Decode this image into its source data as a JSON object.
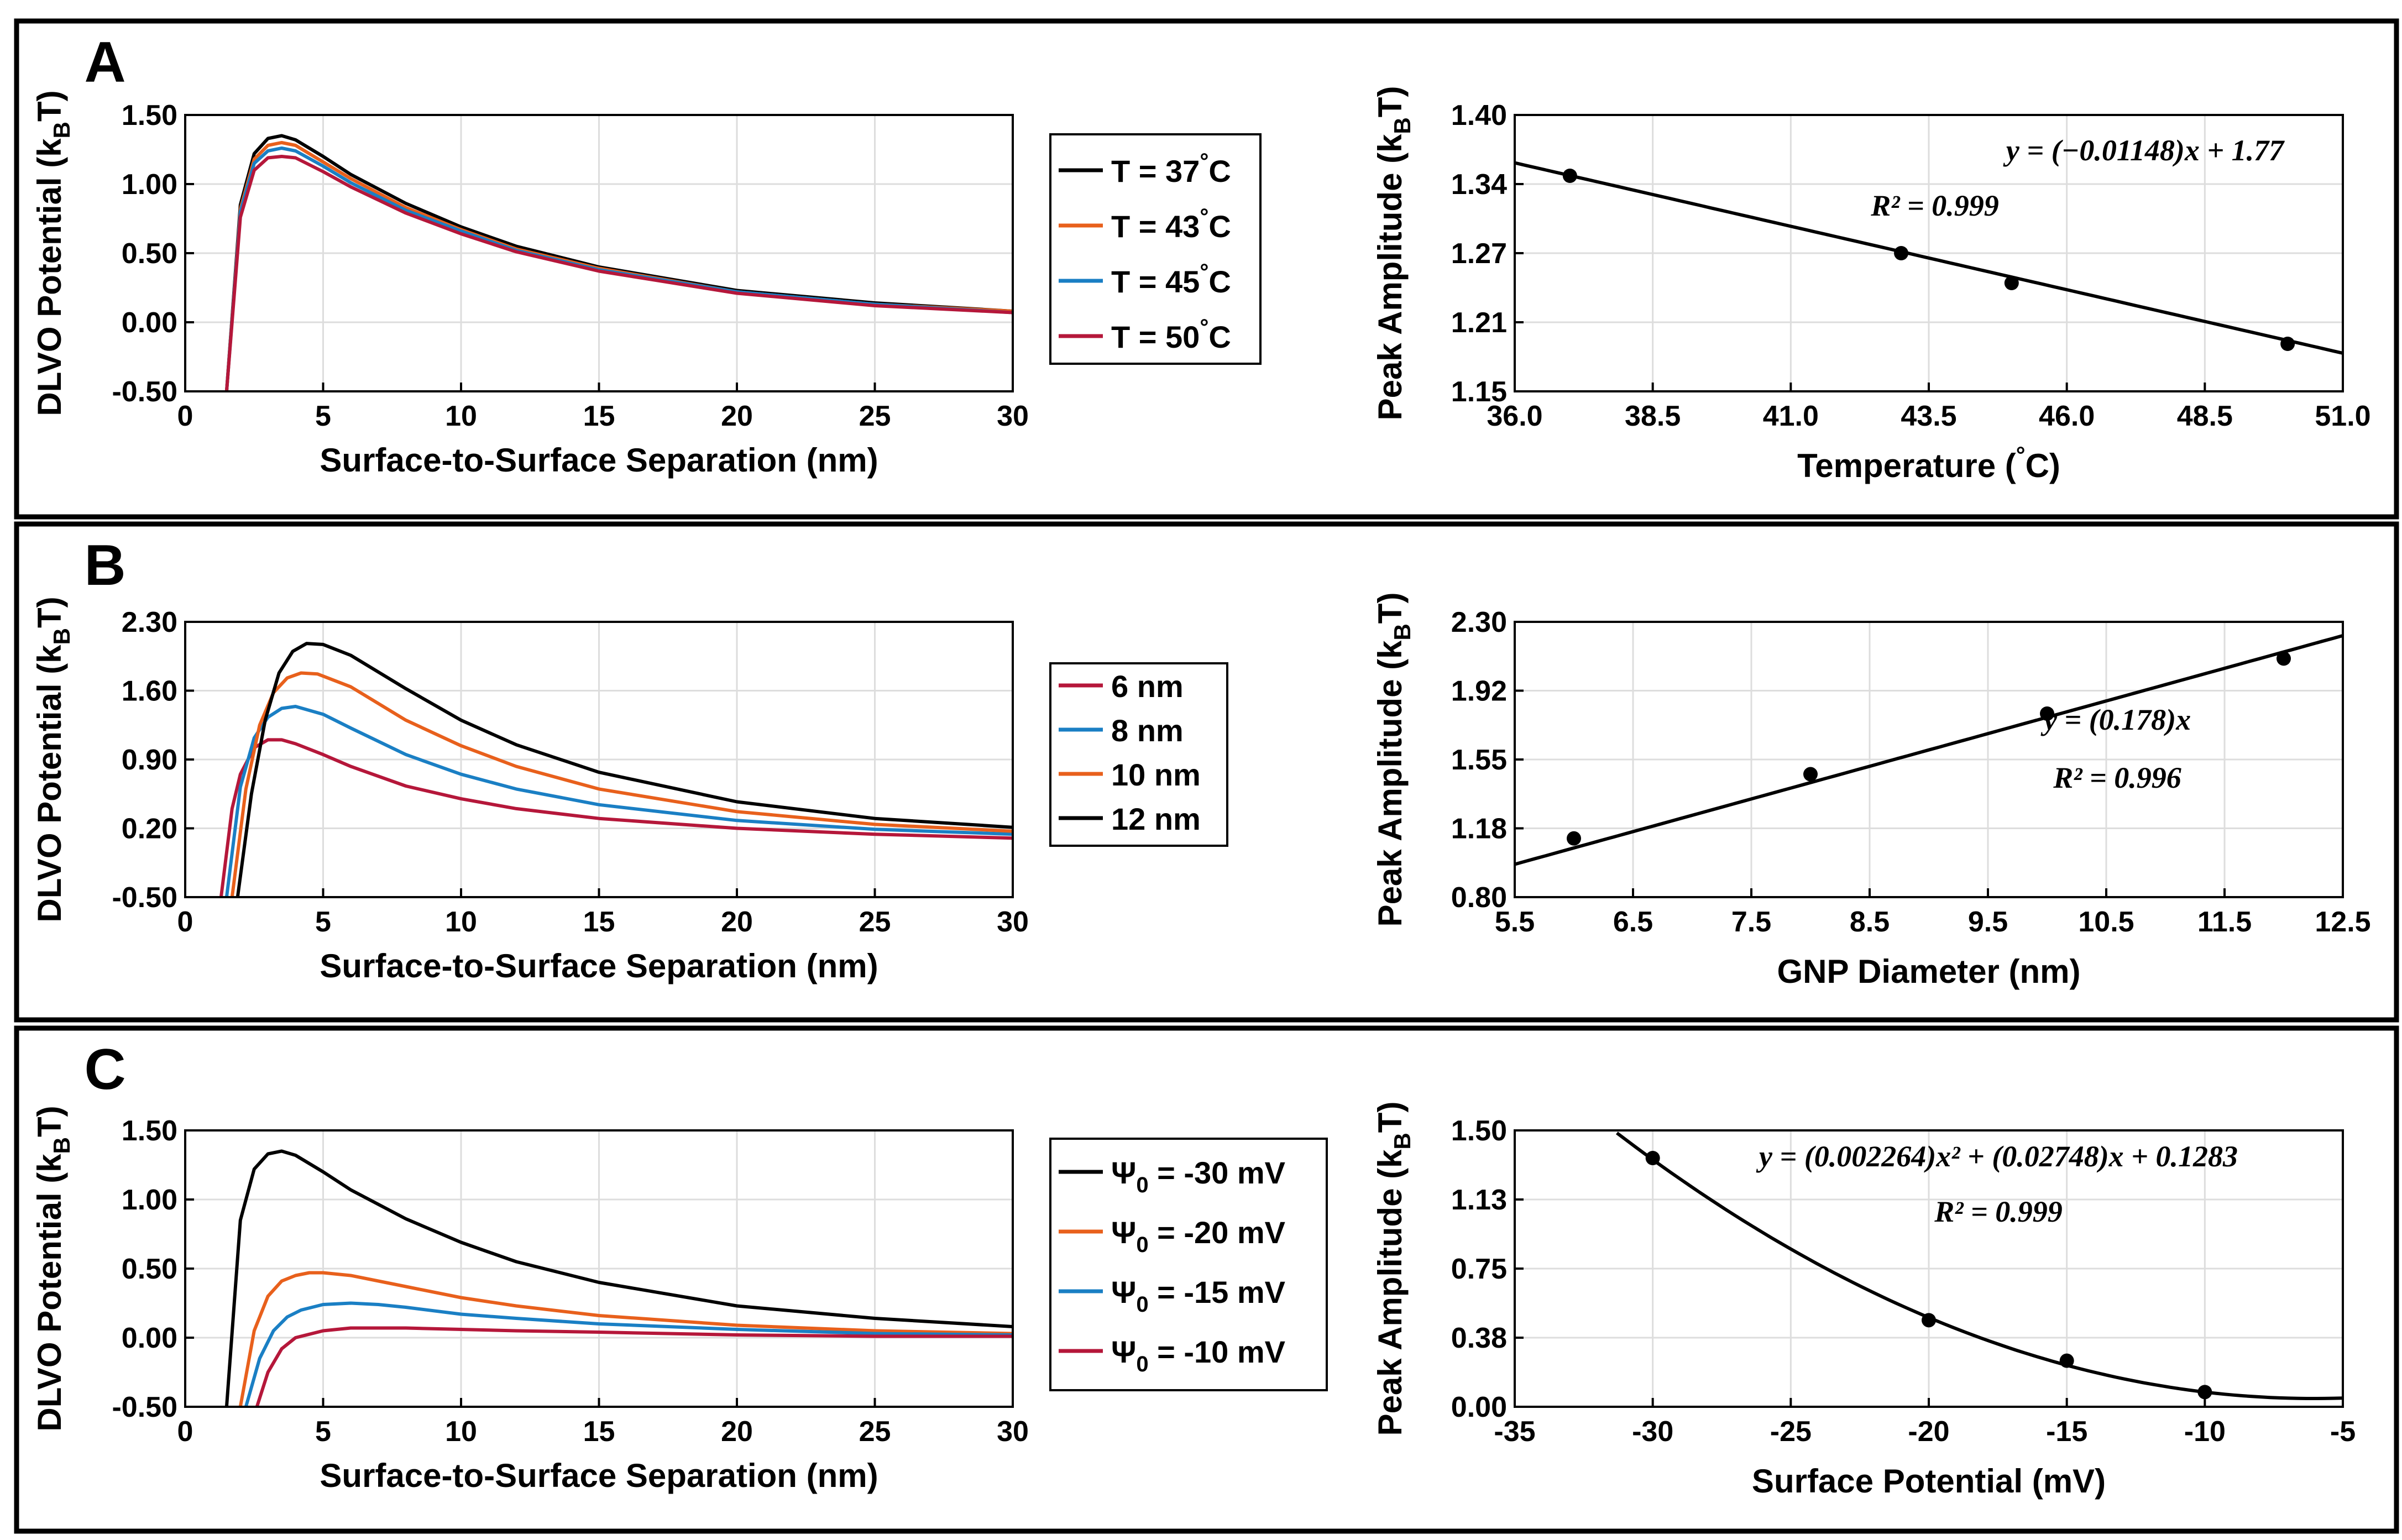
{
  "figure": {
    "panels": [
      {
        "letter": "A",
        "left": {
          "ylabel_main": "DLVO Potential (k",
          "ylabel_sub": "B",
          "ylabel_end": "T)",
          "xlabel": "Surface-to-Surface Separation (nm)",
          "yticks": [
            "1.50",
            "1.00",
            "0.50",
            "0.00",
            "-0.50"
          ],
          "xticks": [
            "0",
            "5",
            "10",
            "15",
            "20",
            "25",
            "30"
          ],
          "legend": [
            {
              "label": "T = 37",
              "sup": "°",
              "tail": "C",
              "color": "#000000"
            },
            {
              "label": "T = 43",
              "sup": "°",
              "tail": "C",
              "color": "#e8601c"
            },
            {
              "label": "T = 45",
              "sup": "°",
              "tail": "C",
              "color": "#1a7fc4"
            },
            {
              "label": "T = 50",
              "sup": "°",
              "tail": "C",
              "color": "#b5173a"
            }
          ]
        },
        "right": {
          "ylabel_main": "Peak Amplitude (k",
          "ylabel_sub": "B",
          "ylabel_end": "T)",
          "xlabel_main": "Temperature (",
          "xlabel_sup": "°",
          "xlabel_end": "C)",
          "yticks": [
            "1.40",
            "1.34",
            "1.27",
            "1.21",
            "1.15"
          ],
          "xticks": [
            "36.0",
            "38.5",
            "41.0",
            "43.5",
            "46.0",
            "48.5",
            "51.0"
          ],
          "equation": "y = (−0.01148)x + 1.77",
          "r2": "R² = 0.999"
        }
      },
      {
        "letter": "B",
        "left": {
          "ylabel_main": "DLVO Potential (k",
          "ylabel_sub": "B",
          "ylabel_end": "T)",
          "xlabel": "Surface-to-Surface Separation (nm)",
          "yticks": [
            "2.30",
            "1.60",
            "0.90",
            "0.20",
            "-0.50"
          ],
          "xticks": [
            "0",
            "5",
            "10",
            "15",
            "20",
            "25",
            "30"
          ],
          "legend": [
            {
              "label": "6 nm",
              "color": "#b5173a"
            },
            {
              "label": "8 nm",
              "color": "#1a7fc4"
            },
            {
              "label": "10 nm",
              "color": "#e8601c"
            },
            {
              "label": "12 nm",
              "color": "#000000"
            }
          ]
        },
        "right": {
          "ylabel_main": "Peak Amplitude (k",
          "ylabel_sub": "B",
          "ylabel_end": "T)",
          "xlabel": "GNP Diameter (nm)",
          "yticks": [
            "2.30",
            "1.92",
            "1.55",
            "1.18",
            "0.80"
          ],
          "xticks": [
            "5.5",
            "6.5",
            "7.5",
            "8.5",
            "9.5",
            "10.5",
            "11.5",
            "12.5"
          ],
          "equation": "y = (0.178)x",
          "r2": "R² = 0.996"
        }
      },
      {
        "letter": "C",
        "left": {
          "ylabel_main": "DLVO Potential (k",
          "ylabel_sub": "B",
          "ylabel_end": "T)",
          "xlabel": "Surface-to-Surface Separation (nm)",
          "yticks": [
            "1.50",
            "1.00",
            "0.50",
            "0.00",
            "-0.50"
          ],
          "xticks": [
            "0",
            "5",
            "10",
            "15",
            "20",
            "25",
            "30"
          ],
          "legend": [
            {
              "label": "Ψ",
              "sub": "0",
              "tail": " = -30 mV",
              "color": "#000000"
            },
            {
              "label": "Ψ",
              "sub": "0",
              "tail": " = -20 mV",
              "color": "#e8601c"
            },
            {
              "label": "Ψ",
              "sub": "0",
              "tail": " = -15 mV",
              "color": "#1a7fc4"
            },
            {
              "label": "Ψ",
              "sub": "0",
              "tail": " = -10 mV",
              "color": "#b5173a"
            }
          ]
        },
        "right": {
          "ylabel_main": "Peak Amplitude (k",
          "ylabel_sub": "B",
          "ylabel_end": "T)",
          "xlabel": "Surface Potential (mV)",
          "yticks": [
            "1.50",
            "1.13",
            "0.75",
            "0.38",
            "0.00"
          ],
          "xticks": [
            "-35",
            "-30",
            "-25",
            "-20",
            "-15",
            "-10",
            "-5"
          ],
          "equation": "y = (0.002264)x² + (0.02748)x + 0.1283",
          "r2": "R² = 0.999"
        }
      }
    ]
  },
  "chart_data": [
    {
      "type": "line",
      "panel": "A-left",
      "xlabel": "Surface-to-Surface Separation (nm)",
      "ylabel": "DLVO Potential (kBT)",
      "xlim": [
        0,
        30
      ],
      "ylim": [
        -0.5,
        1.5
      ],
      "grid": true,
      "legend": "outside-right",
      "series": [
        {
          "name": "T = 37°C",
          "color": "#000000",
          "x": [
            1.5,
            2.0,
            2.5,
            3.0,
            3.5,
            4.0,
            5.0,
            6.0,
            8.0,
            10.0,
            12.0,
            15.0,
            20.0,
            25.0,
            30.0
          ],
          "y": [
            -0.5,
            0.85,
            1.22,
            1.33,
            1.35,
            1.32,
            1.2,
            1.07,
            0.86,
            0.69,
            0.55,
            0.4,
            0.23,
            0.14,
            0.08
          ]
        },
        {
          "name": "T = 43°C",
          "color": "#e8601c",
          "x": [
            1.5,
            2.0,
            2.5,
            3.0,
            3.5,
            4.0,
            5.0,
            6.0,
            8.0,
            10.0,
            12.0,
            15.0,
            20.0,
            25.0,
            30.0
          ],
          "y": [
            -0.5,
            0.82,
            1.18,
            1.28,
            1.3,
            1.28,
            1.16,
            1.04,
            0.83,
            0.67,
            0.53,
            0.39,
            0.22,
            0.13,
            0.08
          ]
        },
        {
          "name": "T = 45°C",
          "color": "#1a7fc4",
          "x": [
            1.5,
            2.0,
            2.5,
            3.0,
            3.5,
            4.0,
            5.0,
            6.0,
            8.0,
            10.0,
            12.0,
            15.0,
            20.0,
            25.0,
            30.0
          ],
          "y": [
            -0.5,
            0.8,
            1.15,
            1.24,
            1.26,
            1.24,
            1.13,
            1.01,
            0.81,
            0.66,
            0.52,
            0.38,
            0.22,
            0.13,
            0.07
          ]
        },
        {
          "name": "T = 50°C",
          "color": "#b5173a",
          "x": [
            1.5,
            2.0,
            2.5,
            3.0,
            3.5,
            4.0,
            5.0,
            6.0,
            8.0,
            10.0,
            12.0,
            15.0,
            20.0,
            25.0,
            30.0
          ],
          "y": [
            -0.5,
            0.76,
            1.1,
            1.19,
            1.2,
            1.19,
            1.09,
            0.98,
            0.79,
            0.64,
            0.51,
            0.37,
            0.21,
            0.12,
            0.07
          ]
        }
      ]
    },
    {
      "type": "scatter",
      "panel": "A-right",
      "xlabel": "Temperature (°C)",
      "ylabel": "Peak Amplitude (kBT)",
      "xlim": [
        36.0,
        51.0
      ],
      "ylim": [
        1.15,
        1.4
      ],
      "grid": true,
      "points": {
        "x": [
          37,
          43,
          45,
          50
        ],
        "y": [
          1.345,
          1.275,
          1.248,
          1.193
        ]
      },
      "fit": {
        "kind": "linear",
        "a": -0.01148,
        "b": 1.77,
        "x_range": [
          36.0,
          51.0
        ]
      }
    },
    {
      "type": "line",
      "panel": "B-left",
      "xlabel": "Surface-to-Surface Separation (nm)",
      "ylabel": "DLVO Potential (kBT)",
      "xlim": [
        0,
        30
      ],
      "ylim": [
        -0.5,
        2.3
      ],
      "grid": true,
      "legend": "outside-right",
      "series": [
        {
          "name": "6 nm",
          "color": "#b5173a",
          "x": [
            1.3,
            1.7,
            2.0,
            2.5,
            3.0,
            3.5,
            4.0,
            5.0,
            6.0,
            8.0,
            10.0,
            12.0,
            15.0,
            20.0,
            25.0,
            30.0
          ],
          "y": [
            -0.5,
            0.4,
            0.75,
            1.02,
            1.1,
            1.1,
            1.06,
            0.95,
            0.83,
            0.63,
            0.5,
            0.4,
            0.3,
            0.2,
            0.14,
            0.1
          ]
        },
        {
          "name": "8 nm",
          "color": "#1a7fc4",
          "x": [
            1.5,
            2.0,
            2.5,
            3.0,
            3.5,
            4.0,
            5.0,
            6.0,
            8.0,
            10.0,
            12.0,
            15.0,
            20.0,
            25.0,
            30.0
          ],
          "y": [
            -0.5,
            0.62,
            1.12,
            1.33,
            1.42,
            1.44,
            1.36,
            1.22,
            0.95,
            0.75,
            0.6,
            0.44,
            0.28,
            0.19,
            0.14
          ]
        },
        {
          "name": "10 nm",
          "color": "#e8601c",
          "x": [
            1.7,
            2.2,
            2.7,
            3.2,
            3.7,
            4.2,
            4.8,
            6.0,
            8.0,
            10.0,
            12.0,
            15.0,
            20.0,
            25.0,
            30.0
          ],
          "y": [
            -0.5,
            0.6,
            1.25,
            1.58,
            1.73,
            1.78,
            1.77,
            1.64,
            1.3,
            1.04,
            0.83,
            0.6,
            0.37,
            0.24,
            0.17
          ]
        },
        {
          "name": "12 nm",
          "color": "#000000",
          "x": [
            1.9,
            2.4,
            2.9,
            3.4,
            3.9,
            4.4,
            5.0,
            6.0,
            8.0,
            10.0,
            12.0,
            15.0,
            20.0,
            25.0,
            30.0
          ],
          "y": [
            -0.5,
            0.55,
            1.3,
            1.78,
            2.0,
            2.08,
            2.07,
            1.96,
            1.62,
            1.3,
            1.05,
            0.77,
            0.47,
            0.3,
            0.21
          ]
        }
      ]
    },
    {
      "type": "scatter",
      "panel": "B-right",
      "xlabel": "GNP Diameter (nm)",
      "ylabel": "Peak Amplitude (kBT)",
      "xlim": [
        5.5,
        12.5
      ],
      "ylim": [
        0.8,
        2.3
      ],
      "grid": true,
      "points": {
        "x": [
          6,
          8,
          10,
          12
        ],
        "y": [
          1.12,
          1.47,
          1.8,
          2.1
        ]
      },
      "fit": {
        "kind": "linear",
        "a": 0.178,
        "b": 0.0,
        "x_range": [
          5.5,
          12.5
        ]
      }
    },
    {
      "type": "line",
      "panel": "C-left",
      "xlabel": "Surface-to-Surface Separation (nm)",
      "ylabel": "DLVO Potential (kBT)",
      "xlim": [
        0,
        30
      ],
      "ylim": [
        -0.5,
        1.5
      ],
      "grid": true,
      "legend": "outside-right",
      "series": [
        {
          "name": "Ψ0 = -30 mV",
          "color": "#000000",
          "x": [
            1.5,
            2.0,
            2.5,
            3.0,
            3.5,
            4.0,
            5.0,
            6.0,
            8.0,
            10.0,
            12.0,
            15.0,
            20.0,
            25.0,
            30.0
          ],
          "y": [
            -0.5,
            0.85,
            1.22,
            1.33,
            1.35,
            1.32,
            1.2,
            1.07,
            0.86,
            0.69,
            0.55,
            0.4,
            0.23,
            0.14,
            0.08
          ]
        },
        {
          "name": "Ψ0 = -20 mV",
          "color": "#e8601c",
          "x": [
            2.0,
            2.5,
            3.0,
            3.5,
            4.0,
            4.5,
            5.0,
            6.0,
            8.0,
            10.0,
            12.0,
            15.0,
            20.0,
            25.0,
            30.0
          ],
          "y": [
            -0.5,
            0.05,
            0.3,
            0.41,
            0.45,
            0.47,
            0.47,
            0.45,
            0.37,
            0.29,
            0.23,
            0.16,
            0.09,
            0.05,
            0.03
          ]
        },
        {
          "name": "Ψ0 = -15 mV",
          "color": "#1a7fc4",
          "x": [
            2.2,
            2.7,
            3.2,
            3.7,
            4.2,
            5.0,
            6.0,
            7.0,
            8.0,
            10.0,
            12.0,
            15.0,
            20.0,
            25.0,
            30.0
          ],
          "y": [
            -0.5,
            -0.15,
            0.05,
            0.15,
            0.2,
            0.24,
            0.25,
            0.24,
            0.22,
            0.17,
            0.14,
            0.1,
            0.06,
            0.03,
            0.02
          ]
        },
        {
          "name": "Ψ0 = -10 mV",
          "color": "#b5173a",
          "x": [
            2.6,
            3.0,
            3.5,
            4.0,
            5.0,
            6.0,
            7.0,
            8.0,
            10.0,
            12.0,
            15.0,
            20.0,
            25.0,
            30.0
          ],
          "y": [
            -0.5,
            -0.25,
            -0.08,
            0.0,
            0.05,
            0.07,
            0.07,
            0.07,
            0.06,
            0.05,
            0.04,
            0.02,
            0.01,
            0.01
          ]
        }
      ]
    },
    {
      "type": "scatter",
      "panel": "C-right",
      "xlabel": "Surface Potential (mV)",
      "ylabel": "Peak Amplitude (kBT)",
      "xlim": [
        -35,
        -5
      ],
      "ylim": [
        0.0,
        1.5
      ],
      "grid": true,
      "points": {
        "x": [
          -30,
          -20,
          -15,
          -10
        ],
        "y": [
          1.35,
          0.47,
          0.25,
          0.08
        ]
      },
      "fit": {
        "kind": "quadratic",
        "a": 0.002264,
        "b": 0.02748,
        "c": 0.1283,
        "x_range": [
          -31.3,
          -5.0
        ]
      }
    }
  ]
}
